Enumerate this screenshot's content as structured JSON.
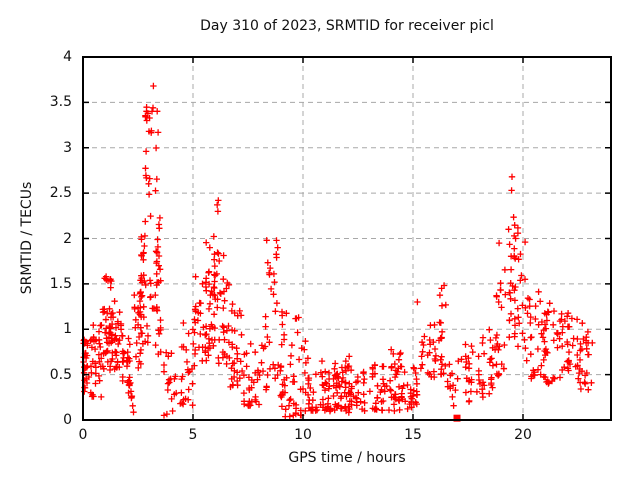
{
  "chart_data": {
    "type": "scatter",
    "title": "Day 310 of 2023, SRMTID for receiver picl",
    "xlabel": "GPS time / hours",
    "ylabel": "SRMTID / TECUs",
    "xlim": [
      0,
      24
    ],
    "ylim": [
      0,
      4
    ],
    "x_ticks": [
      {
        "v": 0,
        "label": "0"
      },
      {
        "v": 5,
        "label": "5"
      },
      {
        "v": 10,
        "label": "10"
      },
      {
        "v": 15,
        "label": "15"
      },
      {
        "v": 20,
        "label": "20"
      }
    ],
    "y_ticks": [
      {
        "v": 0,
        "label": "0"
      },
      {
        "v": 0.5,
        "label": "0.5"
      },
      {
        "v": 1,
        "label": "1"
      },
      {
        "v": 1.5,
        "label": "1.5"
      },
      {
        "v": 2,
        "label": "2"
      },
      {
        "v": 2.5,
        "label": "2.5"
      },
      {
        "v": 3,
        "label": "3"
      },
      {
        "v": 3.5,
        "label": "3.5"
      },
      {
        "v": 4,
        "label": "4"
      }
    ],
    "grid": true,
    "legend": "none",
    "marker": "plus",
    "marker_color": "#ff0000",
    "grid_color": "#a8a8a8",
    "border_color": "#000000",
    "seed": 7,
    "notable_points": [
      [
        3.2,
        3.68
      ],
      [
        3.18,
        3.44
      ],
      [
        2.95,
        3.38
      ],
      [
        2.9,
        3.3
      ],
      [
        3.0,
        3.18
      ],
      [
        2.87,
        2.96
      ],
      [
        19.5,
        2.68
      ],
      [
        19.48,
        2.53
      ],
      [
        6.15,
        2.42
      ],
      [
        6.1,
        2.37
      ],
      [
        8.35,
        1.98
      ],
      [
        8.85,
        1.9
      ],
      [
        16.3,
        1.45
      ],
      [
        1.05,
        1.58
      ],
      [
        15.2,
        1.3
      ],
      [
        9.8,
        1.13
      ],
      [
        23.15,
        0.85
      ],
      [
        0.05,
        0.52
      ]
    ],
    "special_markers": [
      {
        "x": 17.0,
        "y": 0.02,
        "marker": "filled-square",
        "size": 7
      }
    ],
    "density_bands": [
      {
        "x": [
          0.0,
          0.35
        ],
        "y": [
          0.3,
          0.9
        ],
        "cols": 14,
        "ppc": 3,
        "skew": 1.2
      },
      {
        "x": [
          0.35,
          0.85
        ],
        "y": [
          0.25,
          1.05
        ],
        "cols": 14,
        "ppc": 3,
        "skew": 1.2
      },
      {
        "x": [
          0.85,
          1.3
        ],
        "y": [
          0.55,
          1.58
        ],
        "cols": 16,
        "ppc": 3,
        "skew": 1.3
      },
      {
        "x": [
          1.3,
          1.8
        ],
        "y": [
          0.55,
          1.32
        ],
        "cols": 16,
        "ppc": 3,
        "skew": 1.2
      },
      {
        "x": [
          1.8,
          2.2
        ],
        "y": [
          0.25,
          0.95
        ],
        "cols": 12,
        "ppc": 3,
        "skew": 1.2
      },
      {
        "x": [
          2.1,
          2.4
        ],
        "y": [
          0.08,
          0.45
        ],
        "cols": 5,
        "ppc": 2,
        "skew": 1.0
      },
      {
        "x": [
          2.25,
          2.7
        ],
        "y": [
          0.5,
          1.45
        ],
        "cols": 13,
        "ppc": 3,
        "skew": 1.1
      },
      {
        "x": [
          2.6,
          3.0
        ],
        "y": [
          0.8,
          2.1
        ],
        "cols": 13,
        "ppc": 3,
        "skew": 1.2
      },
      {
        "x": [
          2.8,
          3.05
        ],
        "y": [
          2.1,
          3.45
        ],
        "cols": 9,
        "ppc": 2,
        "skew": 1.1
      },
      {
        "x": [
          3.05,
          3.4
        ],
        "y": [
          1.2,
          3.55
        ],
        "cols": 12,
        "ppc": 3,
        "skew": 1.4
      },
      {
        "x": [
          3.3,
          3.7
        ],
        "y": [
          0.6,
          2.3
        ],
        "cols": 10,
        "ppc": 3,
        "skew": 1.5
      },
      {
        "x": [
          3.6,
          4.3
        ],
        "y": [
          0.05,
          0.75
        ],
        "cols": 10,
        "ppc": 2,
        "skew": 1.3
      },
      {
        "x": [
          4.3,
          5.0
        ],
        "y": [
          0.15,
          1.1
        ],
        "cols": 12,
        "ppc": 3,
        "skew": 1.4
      },
      {
        "x": [
          5.0,
          5.6
        ],
        "y": [
          0.55,
          1.6
        ],
        "cols": 15,
        "ppc": 3,
        "skew": 1.2
      },
      {
        "x": [
          5.6,
          6.1
        ],
        "y": [
          0.7,
          2.05
        ],
        "cols": 15,
        "ppc": 3,
        "skew": 1.3
      },
      {
        "x": [
          5.9,
          6.4
        ],
        "y": [
          1.2,
          2.4
        ],
        "cols": 9,
        "ppc": 2,
        "skew": 1.2
      },
      {
        "x": [
          6.1,
          6.7
        ],
        "y": [
          0.6,
          1.9
        ],
        "cols": 13,
        "ppc": 3,
        "skew": 1.3
      },
      {
        "x": [
          6.7,
          7.3
        ],
        "y": [
          0.35,
          1.3
        ],
        "cols": 13,
        "ppc": 3,
        "skew": 1.4
      },
      {
        "x": [
          7.3,
          8.2
        ],
        "y": [
          0.15,
          0.85
        ],
        "cols": 17,
        "ppc": 3,
        "skew": 1.4
      },
      {
        "x": [
          8.2,
          8.6
        ],
        "y": [
          0.25,
          1.2
        ],
        "cols": 8,
        "ppc": 2,
        "skew": 1.2
      },
      {
        "x": [
          8.3,
          8.9
        ],
        "y": [
          1.2,
          1.98
        ],
        "cols": 8,
        "ppc": 2,
        "skew": 1.0
      },
      {
        "x": [
          8.6,
          9.3
        ],
        "y": [
          0.3,
          1.2
        ],
        "cols": 12,
        "ppc": 3,
        "skew": 1.3
      },
      {
        "x": [
          9.0,
          9.4
        ],
        "y": [
          0.02,
          0.4
        ],
        "cols": 6,
        "ppc": 2,
        "skew": 1.0
      },
      {
        "x": [
          9.4,
          10.1
        ],
        "y": [
          0.05,
          1.13
        ],
        "cols": 15,
        "ppc": 3,
        "skew": 1.8
      },
      {
        "x": [
          10.1,
          10.9
        ],
        "y": [
          0.1,
          0.75
        ],
        "cols": 15,
        "ppc": 3,
        "skew": 1.5
      },
      {
        "x": [
          10.9,
          13.0
        ],
        "y": [
          0.08,
          0.55
        ],
        "cols": 40,
        "ppc": 3,
        "skew": 1.2
      },
      {
        "x": [
          11.3,
          12.1
        ],
        "y": [
          0.35,
          0.72
        ],
        "cols": 8,
        "ppc": 2,
        "skew": 1.0
      },
      {
        "x": [
          13.0,
          14.5
        ],
        "y": [
          0.1,
          0.62
        ],
        "cols": 28,
        "ppc": 3,
        "skew": 1.2
      },
      {
        "x": [
          14.0,
          14.5
        ],
        "y": [
          0.55,
          0.85
        ],
        "cols": 5,
        "ppc": 2,
        "skew": 1.0
      },
      {
        "x": [
          14.5,
          15.5
        ],
        "y": [
          0.12,
          0.6
        ],
        "cols": 17,
        "ppc": 3,
        "skew": 1.2
      },
      {
        "x": [
          15.4,
          15.8
        ],
        "y": [
          0.5,
          0.95
        ],
        "cols": 6,
        "ppc": 2,
        "skew": 1.0
      },
      {
        "x": [
          15.8,
          16.1
        ],
        "y": [
          0.45,
          1.05
        ],
        "cols": 7,
        "ppc": 2,
        "skew": 1.1
      },
      {
        "x": [
          16.1,
          16.5
        ],
        "y": [
          0.5,
          1.5
        ],
        "cols": 9,
        "ppc": 3,
        "skew": 1.4
      },
      {
        "x": [
          16.5,
          17.4
        ],
        "y": [
          0.15,
          0.75
        ],
        "cols": 9,
        "ppc": 2,
        "skew": 1.2
      },
      {
        "x": [
          17.4,
          18.1
        ],
        "y": [
          0.2,
          0.85
        ],
        "cols": 12,
        "ppc": 3,
        "skew": 1.2
      },
      {
        "x": [
          18.1,
          18.9
        ],
        "y": [
          0.25,
          1.0
        ],
        "cols": 15,
        "ppc": 3,
        "skew": 1.2
      },
      {
        "x": [
          18.8,
          19.2
        ],
        "y": [
          0.5,
          2.1
        ],
        "cols": 9,
        "ppc": 3,
        "skew": 1.6
      },
      {
        "x": [
          19.2,
          19.7
        ],
        "y": [
          0.9,
          2.3
        ],
        "cols": 11,
        "ppc": 3,
        "skew": 1.2
      },
      {
        "x": [
          19.6,
          20.1
        ],
        "y": [
          0.8,
          2.25
        ],
        "cols": 11,
        "ppc": 3,
        "skew": 1.4
      },
      {
        "x": [
          20.1,
          20.8
        ],
        "y": [
          0.45,
          1.5
        ],
        "cols": 15,
        "ppc": 3,
        "skew": 1.3
      },
      {
        "x": [
          20.8,
          21.6
        ],
        "y": [
          0.4,
          1.3
        ],
        "cols": 17,
        "ppc": 3,
        "skew": 1.2
      },
      {
        "x": [
          21.6,
          22.5
        ],
        "y": [
          0.4,
          1.2
        ],
        "cols": 19,
        "ppc": 3,
        "skew": 1.2
      },
      {
        "x": [
          22.5,
          23.2
        ],
        "y": [
          0.3,
          1.1
        ],
        "cols": 13,
        "ppc": 3,
        "skew": 1.2
      }
    ]
  }
}
